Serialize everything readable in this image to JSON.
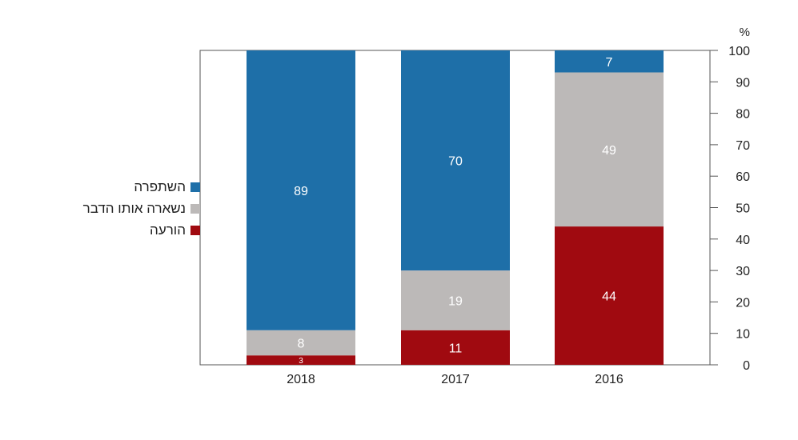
{
  "chart_data": {
    "type": "bar",
    "stacked": true,
    "categories": [
      "2018",
      "2017",
      "2016"
    ],
    "series": [
      {
        "name": "הורעה",
        "color": "#a00a10",
        "values": [
          3,
          11,
          44
        ]
      },
      {
        "name": "נשארה אותו הדבר",
        "color": "#bcb9b8",
        "values": [
          8,
          19,
          49
        ]
      },
      {
        "name": "השתפרה",
        "color": "#1e6fa8",
        "values": [
          89,
          70,
          7
        ]
      }
    ],
    "ylabel": "%",
    "ylim": [
      0,
      100
    ],
    "yticks": [
      0,
      10,
      20,
      30,
      40,
      50,
      60,
      70,
      80,
      90,
      100
    ],
    "y_axis_side": "right",
    "legend_position": "left",
    "legend_order": [
      "השתפרה",
      "נשארה אותו הדבר",
      "הורעה"
    ]
  }
}
